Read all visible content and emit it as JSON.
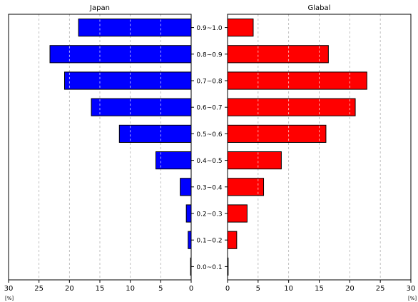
{
  "chart_data": {
    "type": "bar",
    "orientation": "horizontal",
    "categories": [
      "0.0~0.1",
      "0.1~0.2",
      "0.2~0.3",
      "0.3~0.4",
      "0.4~0.5",
      "0.5~0.6",
      "0.6~0.7",
      "0.7~0.8",
      "0.8~0.9",
      "0.9~1.0"
    ],
    "panels": [
      {
        "title": "Japan",
        "direction": "reversed",
        "color": "#0000ff",
        "values": [
          0.1,
          0.5,
          0.8,
          1.8,
          5.8,
          11.8,
          16.4,
          20.8,
          23.2,
          18.5
        ],
        "xlim": [
          30,
          0
        ],
        "xticks": [
          30,
          25,
          20,
          15,
          10,
          5,
          0
        ],
        "unit_label": "[%]"
      },
      {
        "title": "Glabal",
        "direction": "normal",
        "color": "#ff0000",
        "values": [
          0.1,
          1.5,
          3.2,
          5.9,
          8.8,
          16.1,
          20.9,
          22.8,
          16.5,
          4.2
        ],
        "xlim": [
          0,
          30
        ],
        "xticks": [
          0,
          5,
          10,
          15,
          20,
          25,
          30
        ],
        "unit_label": "[%]"
      }
    ],
    "grid": "vertical-dashed"
  }
}
